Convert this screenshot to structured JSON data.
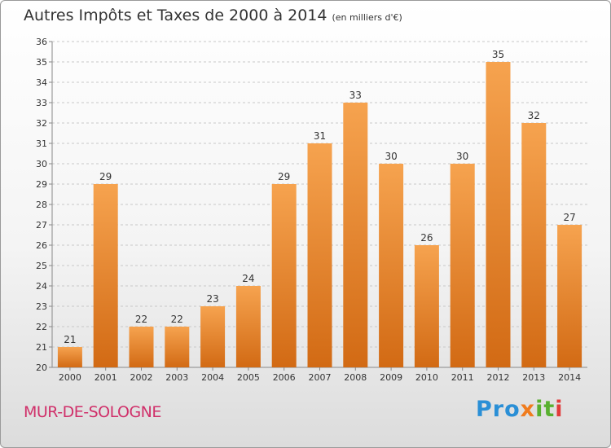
{
  "header": {
    "title": "Autres Impôts et Taxes de 2000 à 2014",
    "unit": "(en milliers d'€)"
  },
  "footer": {
    "commune": "MUR-DE-SOLOGNE",
    "logo": [
      "Pro",
      "x",
      "it",
      "i"
    ]
  },
  "colors": {
    "bar_top": "#f6a34f",
    "bar_bottom": "#d26a14",
    "grid": "#c8c8c8"
  },
  "chart_data": {
    "type": "bar",
    "categories": [
      "2000",
      "2001",
      "2002",
      "2003",
      "2004",
      "2005",
      "2006",
      "2007",
      "2008",
      "2009",
      "2010",
      "2011",
      "2012",
      "2013",
      "2014"
    ],
    "values": [
      21,
      29,
      22,
      22,
      23,
      24,
      29,
      31,
      33,
      30,
      26,
      30,
      35,
      32,
      27
    ],
    "ylim": [
      20,
      36
    ],
    "yticks": [
      20,
      21,
      22,
      23,
      24,
      25,
      26,
      27,
      28,
      29,
      30,
      31,
      32,
      33,
      34,
      35,
      36
    ],
    "grid": true,
    "data_labels": true
  }
}
